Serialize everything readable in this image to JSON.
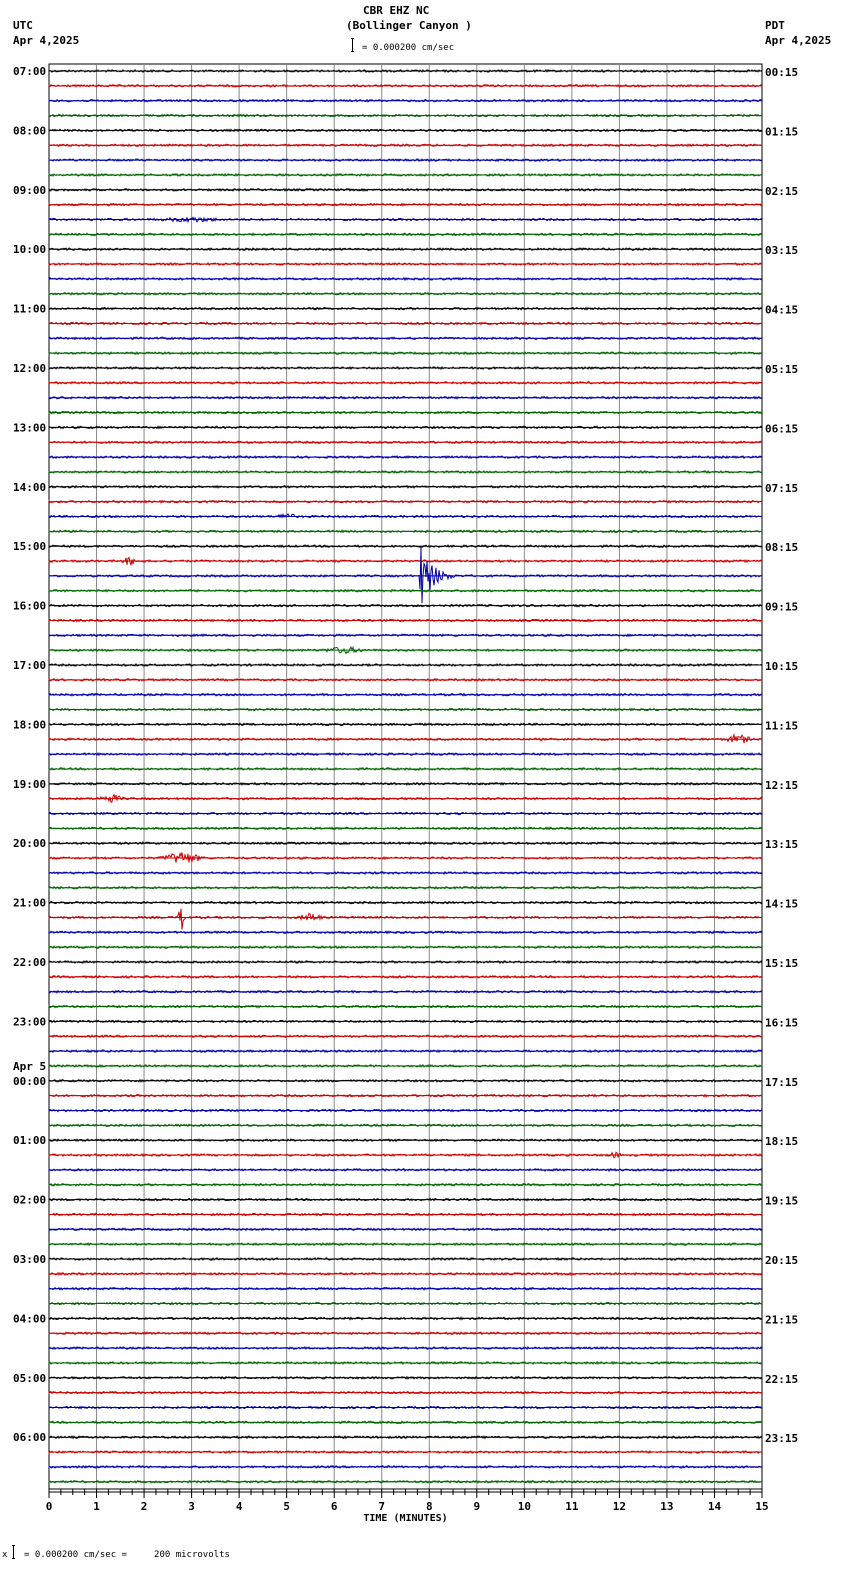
{
  "header": {
    "station": "CBR EHZ NC",
    "site": "(Bollinger Canyon )",
    "scale": "= 0.000200 cm/sec",
    "left_tz": "UTC",
    "left_date": "Apr 4,2025",
    "right_tz": "PDT",
    "right_date": "Apr 4,2025"
  },
  "footer": {
    "scale_note": "= 0.000200 cm/sec =     200 microvolts",
    "prefix": "x"
  },
  "chart_data": {
    "type": "line",
    "title": "CBR EHZ NC (Bollinger Canyon )",
    "subtitle": "= 0.000200 cm/sec",
    "xlabel": "TIME (MINUTES)",
    "ylabel": "",
    "xlim": [
      0,
      15
    ],
    "x_ticks": [
      "0",
      "1",
      "2",
      "3",
      "4",
      "5",
      "6",
      "7",
      "8",
      "9",
      "10",
      "11",
      "12",
      "13",
      "14",
      "15"
    ],
    "grid": true,
    "trace_colors": [
      "#000000",
      "#cc0000",
      "#0000aa",
      "#006600"
    ],
    "traces_per_hour": 4,
    "minutes_per_trace": 15,
    "left_labels": [
      "07:00",
      "08:00",
      "09:00",
      "10:00",
      "11:00",
      "12:00",
      "13:00",
      "14:00",
      "15:00",
      "16:00",
      "17:00",
      "18:00",
      "19:00",
      "20:00",
      "21:00",
      "22:00",
      "23:00",
      "00:00",
      "01:00",
      "02:00",
      "03:00",
      "04:00",
      "05:00",
      "06:00"
    ],
    "date_change_label": "Apr 5",
    "right_labels": [
      "00:15",
      "01:15",
      "02:15",
      "03:15",
      "04:15",
      "05:15",
      "06:15",
      "07:15",
      "08:15",
      "09:15",
      "10:15",
      "11:15",
      "12:15",
      "13:15",
      "14:15",
      "15:15",
      "16:15",
      "17:15",
      "18:15",
      "19:15",
      "20:15",
      "21:15",
      "22:15",
      "23:15"
    ],
    "events": [
      {
        "trace": 10,
        "minute": 3.0,
        "width": 1.5,
        "amp": 2
      },
      {
        "trace": 30,
        "minute": 5.0,
        "width": 0.4,
        "amp": 4
      },
      {
        "trace": 33,
        "minute": 1.7,
        "width": 0.4,
        "amp": 4
      },
      {
        "trace": 34,
        "minute": 7.8,
        "width": 1.2,
        "amp": 35,
        "decay": true
      },
      {
        "trace": 39,
        "minute": 6.2,
        "width": 1.0,
        "amp": 3
      },
      {
        "trace": 45,
        "minute": 14.5,
        "width": 0.6,
        "amp": 5
      },
      {
        "trace": 49,
        "minute": 1.3,
        "width": 0.6,
        "amp": 4
      },
      {
        "trace": 53,
        "minute": 2.8,
        "width": 1.0,
        "amp": 6
      },
      {
        "trace": 57,
        "minute": 2.8,
        "width": 0.2,
        "amp": 14
      },
      {
        "trace": 57,
        "minute": 5.5,
        "width": 0.6,
        "amp": 4
      },
      {
        "trace": 73,
        "minute": 11.9,
        "width": 0.3,
        "amp": 3
      }
    ]
  }
}
